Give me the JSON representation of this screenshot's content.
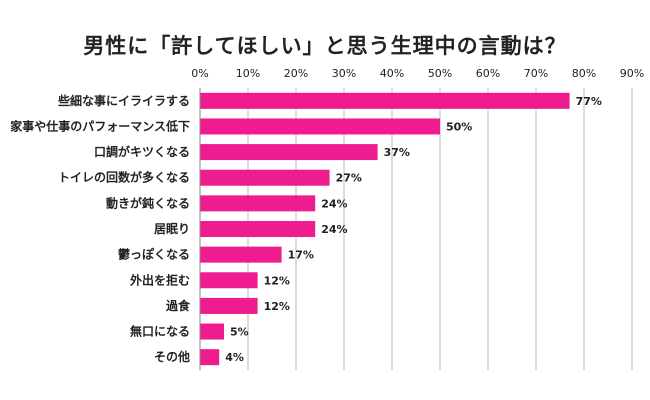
{
  "chart_data": {
    "type": "bar",
    "orientation": "horizontal",
    "title": "男性に「許してほしい」と思う生理中の言動は？",
    "xlabel": "",
    "ylabel": "",
    "xlim": [
      0,
      90
    ],
    "ticks": [
      "0%",
      "10%",
      "20%",
      "30%",
      "40%",
      "50%",
      "60%",
      "70%",
      "80%",
      "90%"
    ],
    "categories": [
      "些細な事にイライラする",
      "家事や仕事のパフォーマンス低下",
      "口調がキツくなる",
      "トイレの回数が多くなる",
      "動きが鈍くなる",
      "居眠り",
      "鬱っぽくなる",
      "外出を拒む",
      "過食",
      "無口になる",
      "その他"
    ],
    "values": [
      77,
      50,
      37,
      27,
      24,
      24,
      17,
      12,
      12,
      5,
      4
    ],
    "value_labels": [
      "77%",
      "50%",
      "37%",
      "27%",
      "24%",
      "24%",
      "17%",
      "12%",
      "12%",
      "5%",
      "4%"
    ],
    "bar_color": "#ee1c8e",
    "grid": true,
    "grid_color": "#bbbbbb",
    "legend": "none"
  }
}
